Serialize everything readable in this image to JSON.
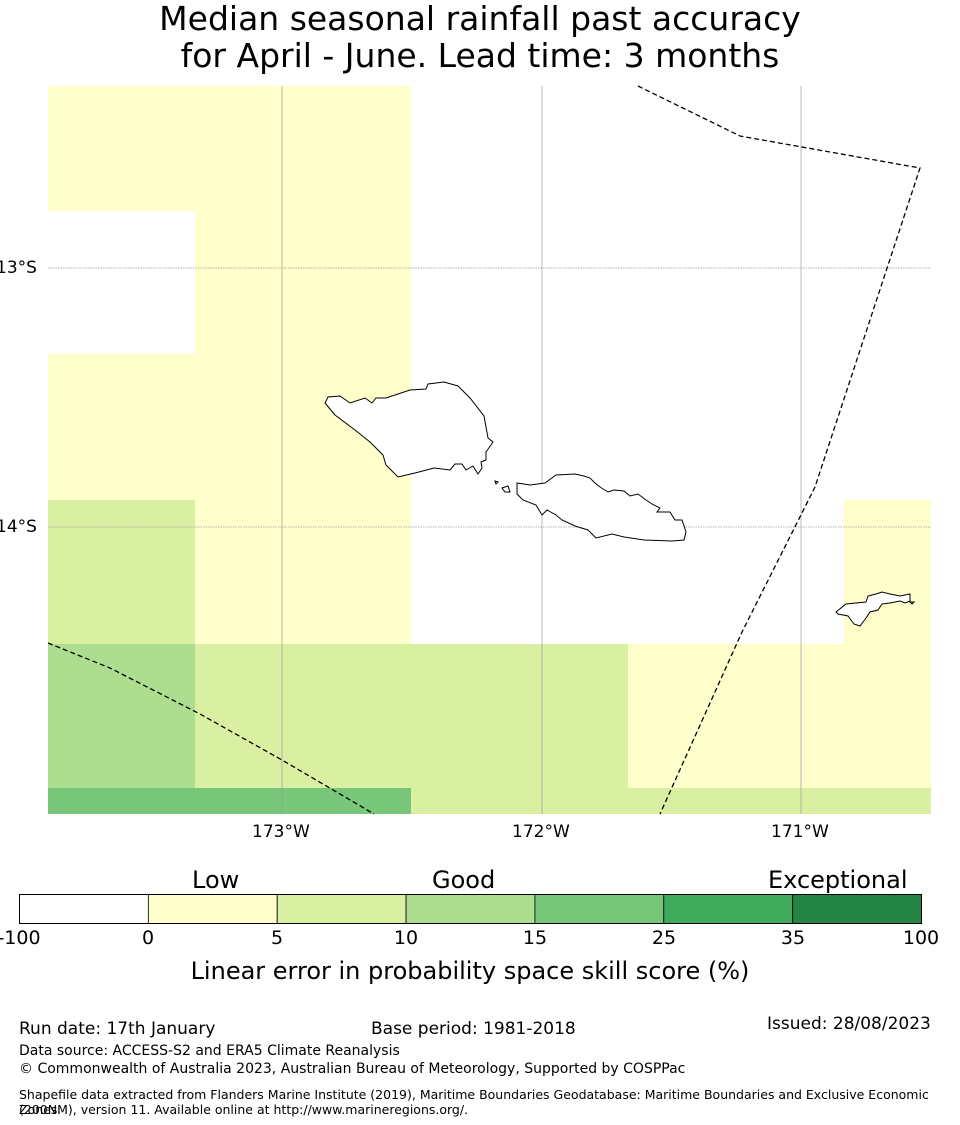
{
  "header": {
    "title_line1": "Median seasonal rainfall past accuracy",
    "title_line2": "for April - June. Lead time: 3 months"
  },
  "map": {
    "lat_labels": [
      "13°S",
      "14°S"
    ],
    "lon_labels": [
      "173°W",
      "172°W",
      "171°W"
    ],
    "colors": {
      "low": "#ffffcc",
      "c5_10": "#d9f0a3",
      "c10_15": "#addd8e",
      "c15_25": "#78c679",
      "c25_35": "#41ab5d",
      "c35_100": "#238443"
    }
  },
  "colorbar": {
    "categories": [
      "Low",
      "Good",
      "Exceptional"
    ],
    "ticks": [
      "-100",
      "0",
      "5",
      "10",
      "15",
      "25",
      "35",
      "100"
    ],
    "label": "Linear error in probability space skill score (%)",
    "bins": [
      "#ffffff",
      "#ffffcc",
      "#d9f0a3",
      "#addd8e",
      "#78c679",
      "#41ab5d",
      "#238443"
    ]
  },
  "footer": {
    "run_date": "Run date: 17th January",
    "base_period": "Base period: 1981-2018",
    "issued": "Issued: 28/08/2023",
    "data_source": "Data source: ACCESS-S2 and ERA5 Climate Reanalysis",
    "copyright": "© Commonwealth of Australia 2023, Australian Bureau of Meteorology, Supported by COSPPac",
    "shapefile_line1": "Shapefile data extracted from Flanders Marine Institute (2019), Maritime Boundaries Geodatabase: Maritime Boundaries and Exclusive Economic Zones",
    "shapefile_line2": "(200NM), version 11. Available online at http://www.marineregions.org/."
  }
}
